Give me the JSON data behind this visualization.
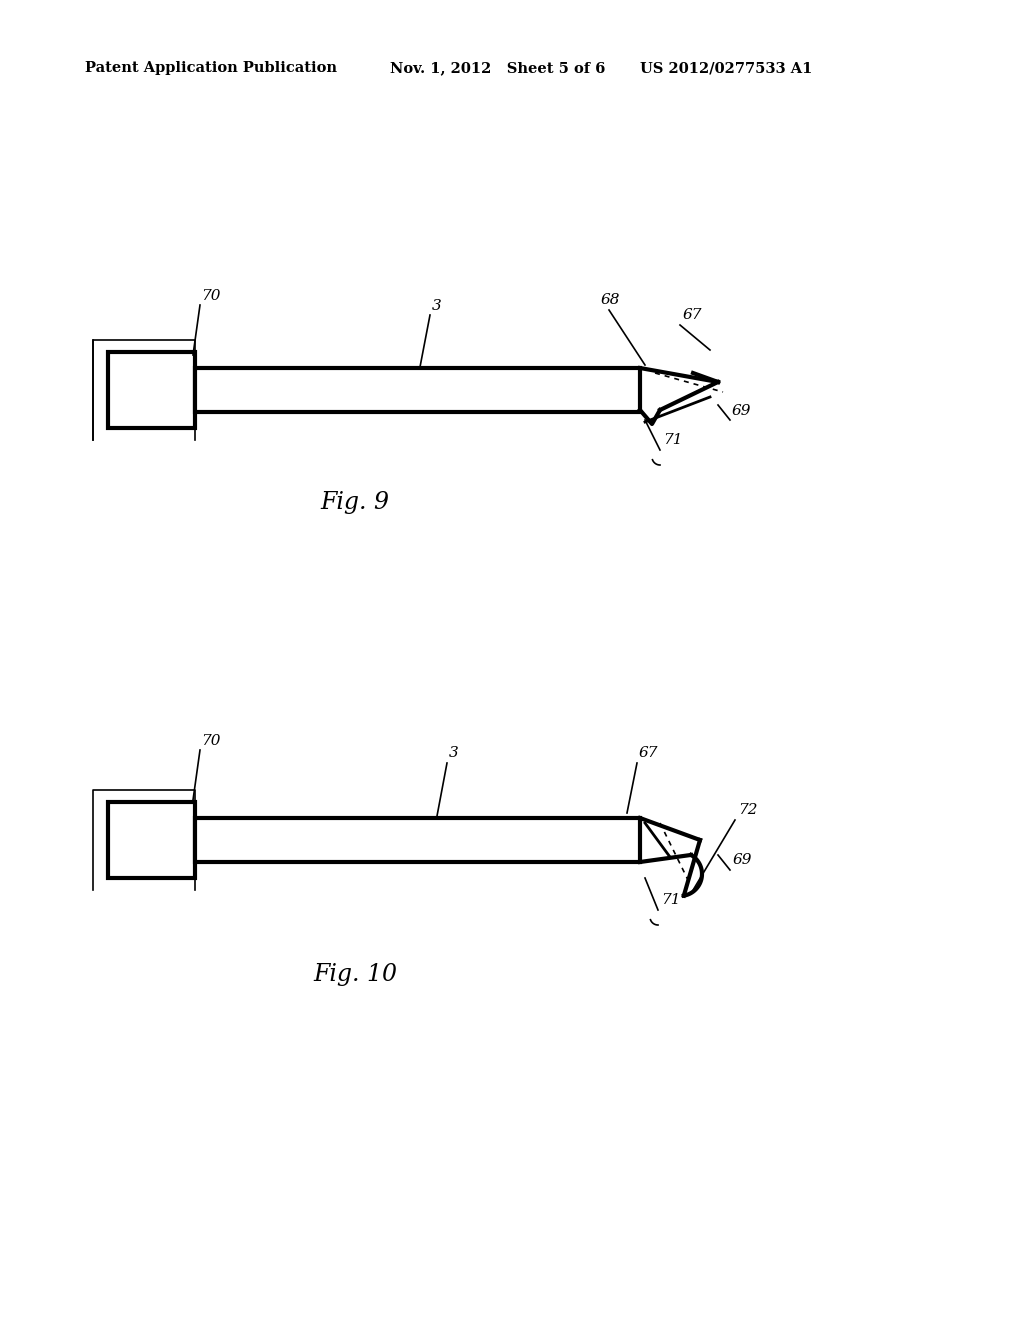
{
  "bg_color": "#ffffff",
  "line_color": "#000000",
  "header_left": "Patent Application Publication",
  "header_mid": "Nov. 1, 2012   Sheet 5 of 6",
  "header_right": "US 2012/0277533 A1",
  "fig9_caption": "Fig. 9",
  "fig10_caption": "Fig. 10"
}
